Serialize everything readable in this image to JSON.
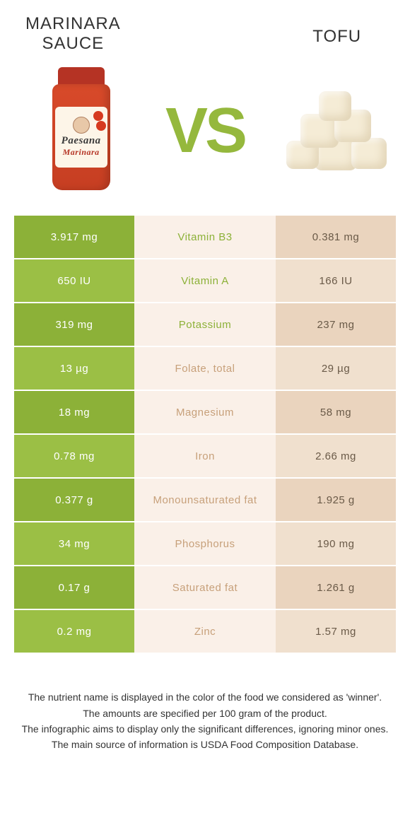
{
  "food_left": {
    "title": "MARINARA SAUCE",
    "color": "#8cb138",
    "label_brand": "Paesana",
    "label_variant": "Marinara"
  },
  "food_right": {
    "title": "TOFU",
    "color": "#e7d3bd"
  },
  "vs": "VS",
  "colors": {
    "green_dark": "#8cb138",
    "green_light": "#9bbf45",
    "beige_dark": "#ead4be",
    "beige_light": "#f0e0ce",
    "mid_bg": "#faf0e8",
    "txt_green": "#8cb138",
    "txt_tan": "#c7a07a"
  },
  "rows": [
    {
      "nutrient": "Vitamin B3",
      "left": "3.917 mg",
      "right": "0.381 mg",
      "winner": "left"
    },
    {
      "nutrient": "Vitamin A",
      "left": "650 IU",
      "right": "166 IU",
      "winner": "left"
    },
    {
      "nutrient": "Potassium",
      "left": "319 mg",
      "right": "237 mg",
      "winner": "left"
    },
    {
      "nutrient": "Folate, total",
      "left": "13 µg",
      "right": "29 µg",
      "winner": "right"
    },
    {
      "nutrient": "Magnesium",
      "left": "18 mg",
      "right": "58 mg",
      "winner": "right"
    },
    {
      "nutrient": "Iron",
      "left": "0.78 mg",
      "right": "2.66 mg",
      "winner": "right"
    },
    {
      "nutrient": "Monounsaturated fat",
      "left": "0.377 g",
      "right": "1.925 g",
      "winner": "right"
    },
    {
      "nutrient": "Phosphorus",
      "left": "34 mg",
      "right": "190 mg",
      "winner": "right"
    },
    {
      "nutrient": "Saturated fat",
      "left": "0.17 g",
      "right": "1.261 g",
      "winner": "right"
    },
    {
      "nutrient": "Zinc",
      "left": "0.2 mg",
      "right": "1.57 mg",
      "winner": "right"
    }
  ],
  "footer": {
    "l1": "The nutrient name is displayed in the color of the food we considered as 'winner'.",
    "l2": "The amounts are specified per 100 gram of the product.",
    "l3": "The infographic aims to display only the significant differences, ignoring minor ones.",
    "l4": "The main source of information is USDA Food Composition Database."
  }
}
